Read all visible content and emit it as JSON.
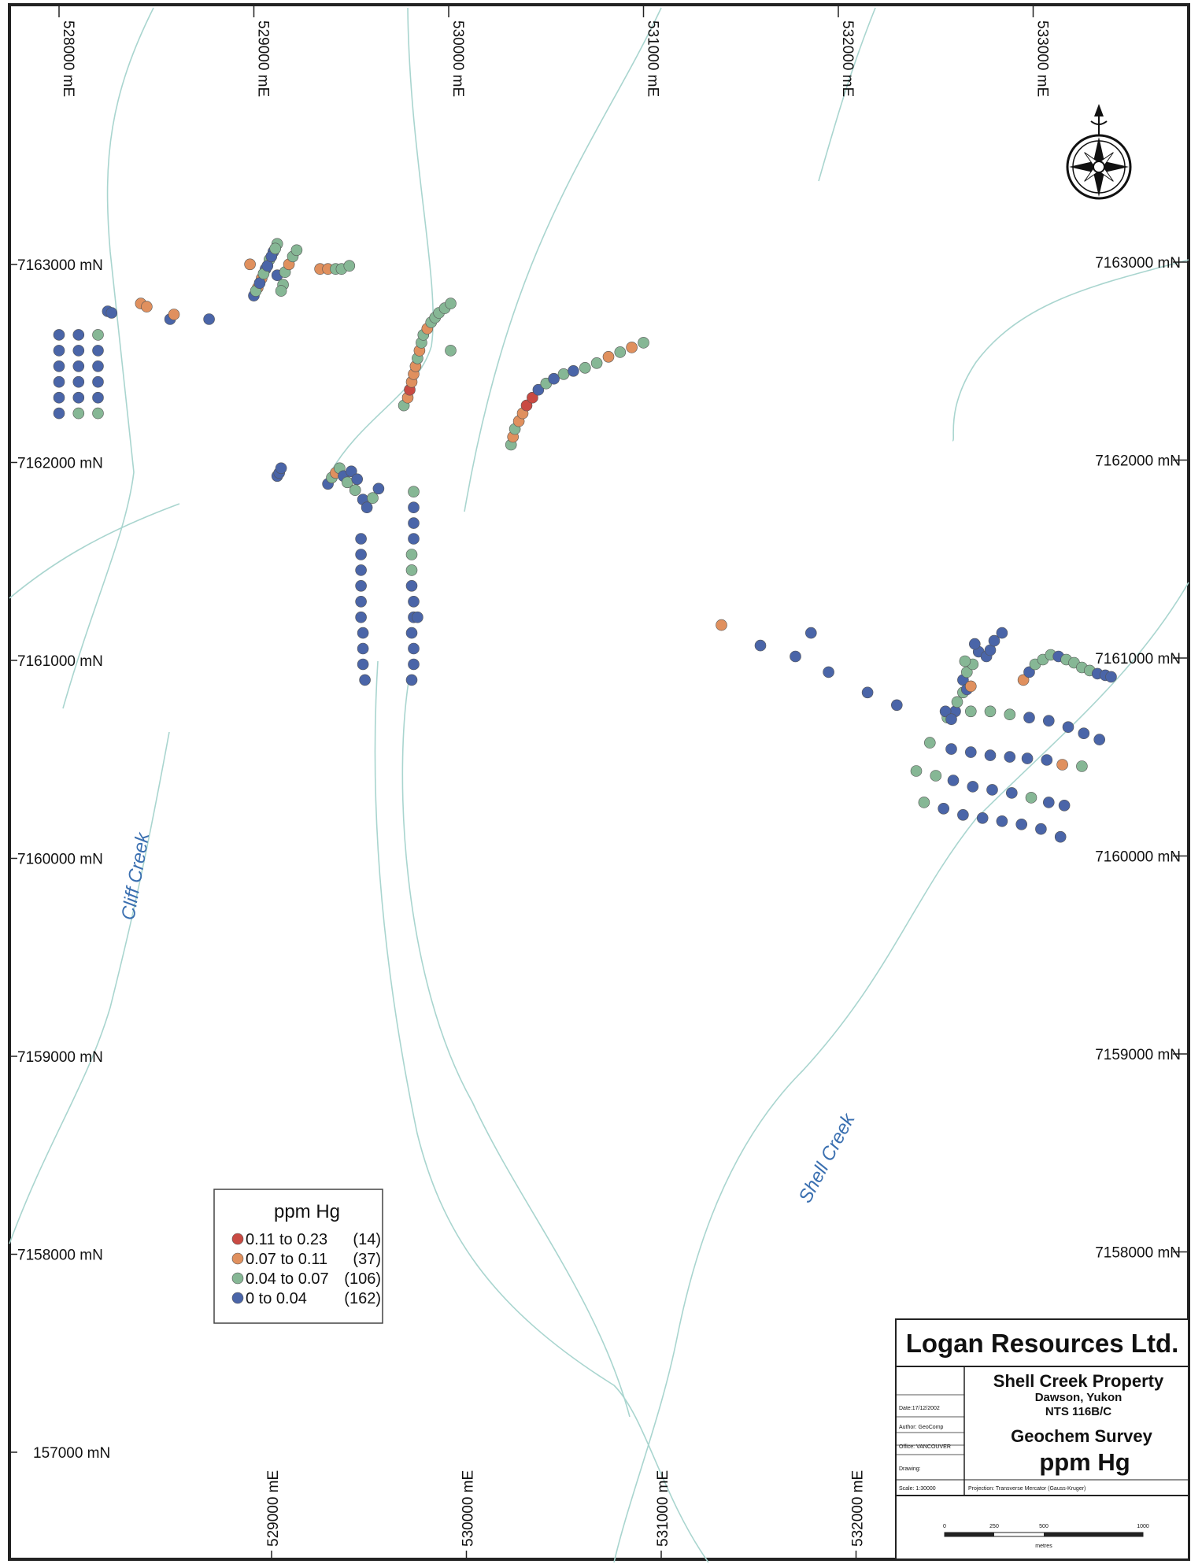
{
  "map": {
    "easting_top_labels": [
      "528000 mE",
      "529000 mE",
      "530000 mE",
      "531000 mE",
      "532000 mE",
      "533000 mE"
    ],
    "easting_bottom_labels": [
      "529000 mE",
      "530000 mE",
      "531000 mE",
      "532000 mE"
    ],
    "northing_left_labels": [
      "7163000 mN",
      "7162000 mN",
      "7161000 mN",
      "7160000 mN",
      "7159000 mN",
      "7158000 mN",
      "157000 mN"
    ],
    "northing_right_labels": [
      "7163000 mN",
      "7162000 mN",
      "7161000 mN",
      "7160000 mN",
      "7159000 mN",
      "7158000 mN"
    ],
    "creek_labels": [
      "Cliff Creek",
      "Shell Creek"
    ],
    "icons": [
      "compass-rose-icon"
    ]
  },
  "legend": {
    "title": "ppm Hg",
    "classes": [
      {
        "range": "0.11 to 0.23",
        "count": "(14)",
        "color": "#c94a43"
      },
      {
        "range": "0.07 to 0.11",
        "count": "(37)",
        "color": "#e0905e"
      },
      {
        "range": "0.04 to 0.07",
        "count": "(106)",
        "color": "#86b795"
      },
      {
        "range": "0      to 0.04",
        "count": "(162)",
        "color": "#4a65a8"
      }
    ]
  },
  "title_block": {
    "company": "Logan Resources Ltd.",
    "property": "Shell Creek Property",
    "location": "Dawson, Yukon",
    "nts": "NTS 116B/C",
    "survey": "Geochem Survey",
    "element": "ppm Hg",
    "date": "Date:17/12/2002",
    "author": "Author: GeoComp",
    "office": "Office: VANCOUVER",
    "drawing": "Drawing:",
    "scale": "Scale: 1:30000",
    "projection": "Projection: Transverse Mercator (Gauss-Kruger)",
    "scale_bar_labels": [
      "0",
      "250",
      "500",
      "1000"
    ],
    "scale_bar_unit": "metres"
  },
  "samples": {
    "note_colors": {
      "red": "#c94a43",
      "orange": "#e0905e",
      "green": "#86b795",
      "blue": "#4a65a8"
    },
    "grid_west": [
      [
        528000,
        7162200,
        "b"
      ],
      [
        528100,
        7162200,
        "b"
      ],
      [
        528200,
        7162200,
        "g"
      ],
      [
        528000,
        7162100,
        "b"
      ],
      [
        528100,
        7162100,
        "b"
      ],
      [
        528200,
        7162100,
        "b"
      ],
      [
        528000,
        7162000,
        "b"
      ],
      [
        528100,
        7162000,
        "b"
      ],
      [
        528200,
        7162000,
        "b"
      ],
      [
        528000,
        7161900,
        "b"
      ],
      [
        528100,
        7161900,
        "b"
      ],
      [
        528200,
        7161900,
        "b"
      ],
      [
        528000,
        7161800,
        "b"
      ],
      [
        528100,
        7161800,
        "b"
      ],
      [
        528200,
        7161800,
        "b"
      ],
      [
        528000,
        7161700,
        "b"
      ],
      [
        528100,
        7161700,
        "g"
      ],
      [
        528200,
        7161700,
        "g"
      ],
      [
        528250,
        7162350,
        "b"
      ],
      [
        528270,
        7162340,
        "b"
      ],
      [
        528420,
        7162400,
        "o"
      ],
      [
        528450,
        7162380,
        "o"
      ],
      [
        528570,
        7162300,
        "b"
      ],
      [
        528590,
        7162330,
        "o"
      ],
      [
        528770,
        7162300,
        "b"
      ]
    ],
    "ridge_nw": [
      [
        529000,
        7162450,
        "b"
      ],
      [
        529020,
        7162500,
        "o"
      ],
      [
        529040,
        7162560,
        "o"
      ],
      [
        529060,
        7162620,
        "b"
      ],
      [
        529080,
        7162680,
        "g"
      ],
      [
        529100,
        7162730,
        "b"
      ],
      [
        529120,
        7162780,
        "g"
      ],
      [
        529010,
        7162480,
        "g"
      ],
      [
        529030,
        7162530,
        "b"
      ],
      [
        529050,
        7162590,
        "g"
      ],
      [
        529070,
        7162640,
        "b"
      ],
      [
        529090,
        7162700,
        "b"
      ],
      [
        529110,
        7162750,
        "g"
      ],
      [
        528980,
        7162650,
        "o"
      ],
      [
        529120,
        7162580,
        "b"
      ],
      [
        529150,
        7162520,
        "g"
      ],
      [
        529160,
        7162600,
        "g"
      ],
      [
        529180,
        7162650,
        "o"
      ],
      [
        529200,
        7162700,
        "g"
      ],
      [
        529220,
        7162740,
        "g"
      ],
      [
        529140,
        7162480,
        "g"
      ],
      [
        529340,
        7162620,
        "o"
      ],
      [
        529380,
        7162620,
        "o"
      ],
      [
        529420,
        7162620,
        "g"
      ],
      [
        529450,
        7162620,
        "g"
      ],
      [
        529490,
        7162640,
        "g"
      ]
    ],
    "line_530": [
      [
        529770,
        7161750,
        "g"
      ],
      [
        529790,
        7161800,
        "o"
      ],
      [
        529800,
        7161850,
        "r"
      ],
      [
        529810,
        7161900,
        "o"
      ],
      [
        529820,
        7161950,
        "o"
      ],
      [
        529830,
        7162000,
        "o"
      ],
      [
        529840,
        7162050,
        "g"
      ],
      [
        529850,
        7162100,
        "o"
      ],
      [
        529860,
        7162150,
        "g"
      ],
      [
        529870,
        7162200,
        "g"
      ],
      [
        529890,
        7162240,
        "o"
      ],
      [
        529910,
        7162280,
        "g"
      ],
      [
        529930,
        7162310,
        "g"
      ],
      [
        529950,
        7162340,
        "g"
      ],
      [
        529980,
        7162370,
        "g"
      ],
      [
        530010,
        7162400,
        "g"
      ],
      [
        530010,
        7162100,
        "g"
      ]
    ],
    "line_531": [
      [
        530320,
        7161500,
        "g"
      ],
      [
        530330,
        7161550,
        "o"
      ],
      [
        530340,
        7161600,
        "g"
      ],
      [
        530360,
        7161650,
        "o"
      ],
      [
        530380,
        7161700,
        "o"
      ],
      [
        530400,
        7161750,
        "r"
      ],
      [
        530430,
        7161800,
        "r"
      ],
      [
        530460,
        7161850,
        "b"
      ],
      [
        530500,
        7161890,
        "g"
      ],
      [
        530540,
        7161920,
        "b"
      ],
      [
        530590,
        7161950,
        "g"
      ],
      [
        530640,
        7161970,
        "b"
      ],
      [
        530700,
        7161990,
        "g"
      ],
      [
        530760,
        7162020,
        "g"
      ],
      [
        530820,
        7162060,
        "o"
      ],
      [
        530880,
        7162090,
        "g"
      ],
      [
        530940,
        7162120,
        "o"
      ],
      [
        531000,
        7162150,
        "g"
      ]
    ],
    "cluster_mid": [
      [
        529120,
        7161300,
        "b"
      ],
      [
        529130,
        7161320,
        "b"
      ],
      [
        529140,
        7161350,
        "b"
      ],
      [
        529380,
        7161250,
        "b"
      ],
      [
        529400,
        7161290,
        "g"
      ],
      [
        529420,
        7161320,
        "o"
      ],
      [
        529440,
        7161350,
        "g"
      ],
      [
        529460,
        7161300,
        "b"
      ],
      [
        529480,
        7161260,
        "g"
      ],
      [
        529500,
        7161330,
        "b"
      ],
      [
        529530,
        7161280,
        "b"
      ],
      [
        529520,
        7161210,
        "g"
      ],
      [
        529560,
        7161150,
        "b"
      ],
      [
        529580,
        7161100,
        "b"
      ],
      [
        529610,
        7161160,
        "g"
      ],
      [
        529640,
        7161220,
        "b"
      ]
    ],
    "lines_south": [
      [
        529550,
        7160900,
        "b"
      ],
      [
        529550,
        7160800,
        "b"
      ],
      [
        529550,
        7160700,
        "b"
      ],
      [
        529550,
        7160600,
        "b"
      ],
      [
        529550,
        7160500,
        "b"
      ],
      [
        529550,
        7160400,
        "b"
      ],
      [
        529560,
        7160300,
        "b"
      ],
      [
        529560,
        7160200,
        "b"
      ],
      [
        529560,
        7160100,
        "b"
      ],
      [
        529570,
        7160000,
        "b"
      ],
      [
        529820,
        7161200,
        "g"
      ],
      [
        529820,
        7161100,
        "b"
      ],
      [
        529820,
        7161000,
        "b"
      ],
      [
        529820,
        7160900,
        "b"
      ],
      [
        529810,
        7160800,
        "g"
      ],
      [
        529810,
        7160700,
        "g"
      ],
      [
        529810,
        7160600,
        "b"
      ],
      [
        529820,
        7160500,
        "b"
      ],
      [
        529820,
        7160400,
        "b"
      ],
      [
        529840,
        7160400,
        "b"
      ],
      [
        529810,
        7160300,
        "b"
      ],
      [
        529820,
        7160200,
        "b"
      ],
      [
        529820,
        7160100,
        "b"
      ],
      [
        529810,
        7160000,
        "b"
      ]
    ],
    "east_traverse": [
      [
        531400,
        7160350,
        "o"
      ],
      [
        531600,
        7160220,
        "b"
      ],
      [
        531780,
        7160150,
        "b"
      ],
      [
        531860,
        7160300,
        "b"
      ],
      [
        531950,
        7160050,
        "b"
      ],
      [
        532150,
        7159920,
        "b"
      ],
      [
        532300,
        7159840,
        "b"
      ]
    ],
    "east_grid": [
      [
        532560,
        7159760,
        "g"
      ],
      [
        532600,
        7159800,
        "b"
      ],
      [
        532610,
        7159860,
        "g"
      ],
      [
        532640,
        7159920,
        "g"
      ],
      [
        532640,
        7160000,
        "b"
      ],
      [
        532660,
        7160050,
        "g"
      ],
      [
        532690,
        7160100,
        "g"
      ],
      [
        532720,
        7160180,
        "b"
      ],
      [
        532760,
        7160150,
        "b"
      ],
      [
        532780,
        7160190,
        "b"
      ],
      [
        532800,
        7160250,
        "b"
      ],
      [
        532840,
        7160300,
        "b"
      ],
      [
        532700,
        7160230,
        "b"
      ],
      [
        532650,
        7160120,
        "g"
      ],
      [
        532660,
        7159940,
        "b"
      ],
      [
        532680,
        7159960,
        "o"
      ],
      [
        532550,
        7159800,
        "b"
      ],
      [
        532580,
        7159750,
        "b"
      ],
      [
        532680,
        7159800,
        "g"
      ],
      [
        532780,
        7159800,
        "g"
      ],
      [
        532880,
        7159780,
        "g"
      ],
      [
        532980,
        7159760,
        "b"
      ],
      [
        533080,
        7159740,
        "b"
      ],
      [
        533180,
        7159700,
        "b"
      ],
      [
        533260,
        7159660,
        "b"
      ],
      [
        533340,
        7159620,
        "b"
      ],
      [
        532470,
        7159600,
        "g"
      ],
      [
        532580,
        7159560,
        "b"
      ],
      [
        532680,
        7159540,
        "b"
      ],
      [
        532780,
        7159520,
        "b"
      ],
      [
        532880,
        7159510,
        "b"
      ],
      [
        532970,
        7159500,
        "b"
      ],
      [
        533070,
        7159490,
        "b"
      ],
      [
        533150,
        7159460,
        "o"
      ],
      [
        533250,
        7159450,
        "g"
      ],
      [
        532400,
        7159420,
        "g"
      ],
      [
        532500,
        7159390,
        "g"
      ],
      [
        532590,
        7159360,
        "b"
      ],
      [
        532690,
        7159320,
        "b"
      ],
      [
        532790,
        7159300,
        "b"
      ],
      [
        532890,
        7159280,
        "b"
      ],
      [
        532990,
        7159250,
        "g"
      ],
      [
        533080,
        7159220,
        "b"
      ],
      [
        533160,
        7159200,
        "b"
      ],
      [
        532440,
        7159220,
        "g"
      ],
      [
        532540,
        7159180,
        "b"
      ],
      [
        532640,
        7159140,
        "b"
      ],
      [
        532740,
        7159120,
        "b"
      ],
      [
        532840,
        7159100,
        "b"
      ],
      [
        532940,
        7159080,
        "b"
      ],
      [
        533040,
        7159050,
        "b"
      ],
      [
        533140,
        7159000,
        "b"
      ],
      [
        532950,
        7160000,
        "o"
      ],
      [
        532980,
        7160050,
        "b"
      ],
      [
        533010,
        7160100,
        "g"
      ],
      [
        533050,
        7160130,
        "g"
      ],
      [
        533090,
        7160160,
        "g"
      ],
      [
        533130,
        7160150,
        "b"
      ],
      [
        533170,
        7160130,
        "g"
      ],
      [
        533210,
        7160110,
        "g"
      ],
      [
        533250,
        7160080,
        "g"
      ],
      [
        533290,
        7160060,
        "g"
      ],
      [
        533330,
        7160040,
        "b"
      ],
      [
        533370,
        7160030,
        "b"
      ],
      [
        533400,
        7160020,
        "b"
      ]
    ]
  }
}
